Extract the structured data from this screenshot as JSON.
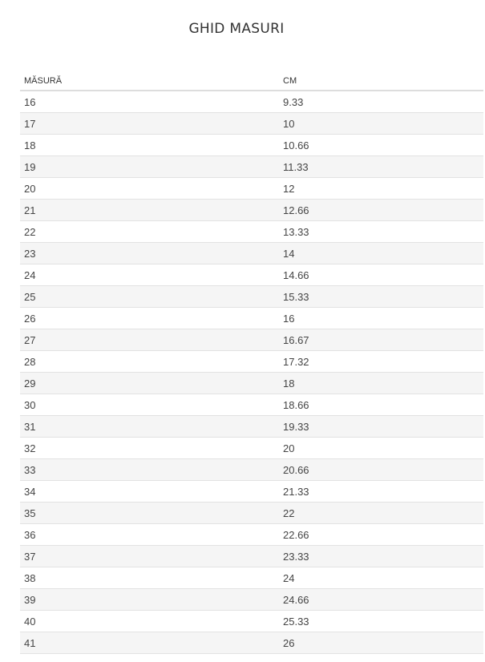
{
  "title": "GHID MASURI",
  "table": {
    "headers": [
      "MĂSURĂ",
      "CM"
    ],
    "rows": [
      [
        "16",
        "9.33"
      ],
      [
        "17",
        "10"
      ],
      [
        "18",
        "10.66"
      ],
      [
        "19",
        "11.33"
      ],
      [
        "20",
        "12"
      ],
      [
        "21",
        "12.66"
      ],
      [
        "22",
        "13.33"
      ],
      [
        "23",
        "14"
      ],
      [
        "24",
        "14.66"
      ],
      [
        "25",
        "15.33"
      ],
      [
        "26",
        "16"
      ],
      [
        "27",
        "16.67"
      ],
      [
        "28",
        "17.32"
      ],
      [
        "29",
        "18"
      ],
      [
        "30",
        "18.66"
      ],
      [
        "31",
        "19.33"
      ],
      [
        "32",
        "20"
      ],
      [
        "33",
        "20.66"
      ],
      [
        "34",
        "21.33"
      ],
      [
        "35",
        "22"
      ],
      [
        "36",
        "22.66"
      ],
      [
        "37",
        "23.33"
      ],
      [
        "38",
        "24"
      ],
      [
        "39",
        "24.66"
      ],
      [
        "40",
        "25.33"
      ],
      [
        "41",
        "26"
      ]
    ]
  },
  "colors": {
    "stripe": "#f5f5f5",
    "border": "#dddddd",
    "text": "#333333"
  }
}
